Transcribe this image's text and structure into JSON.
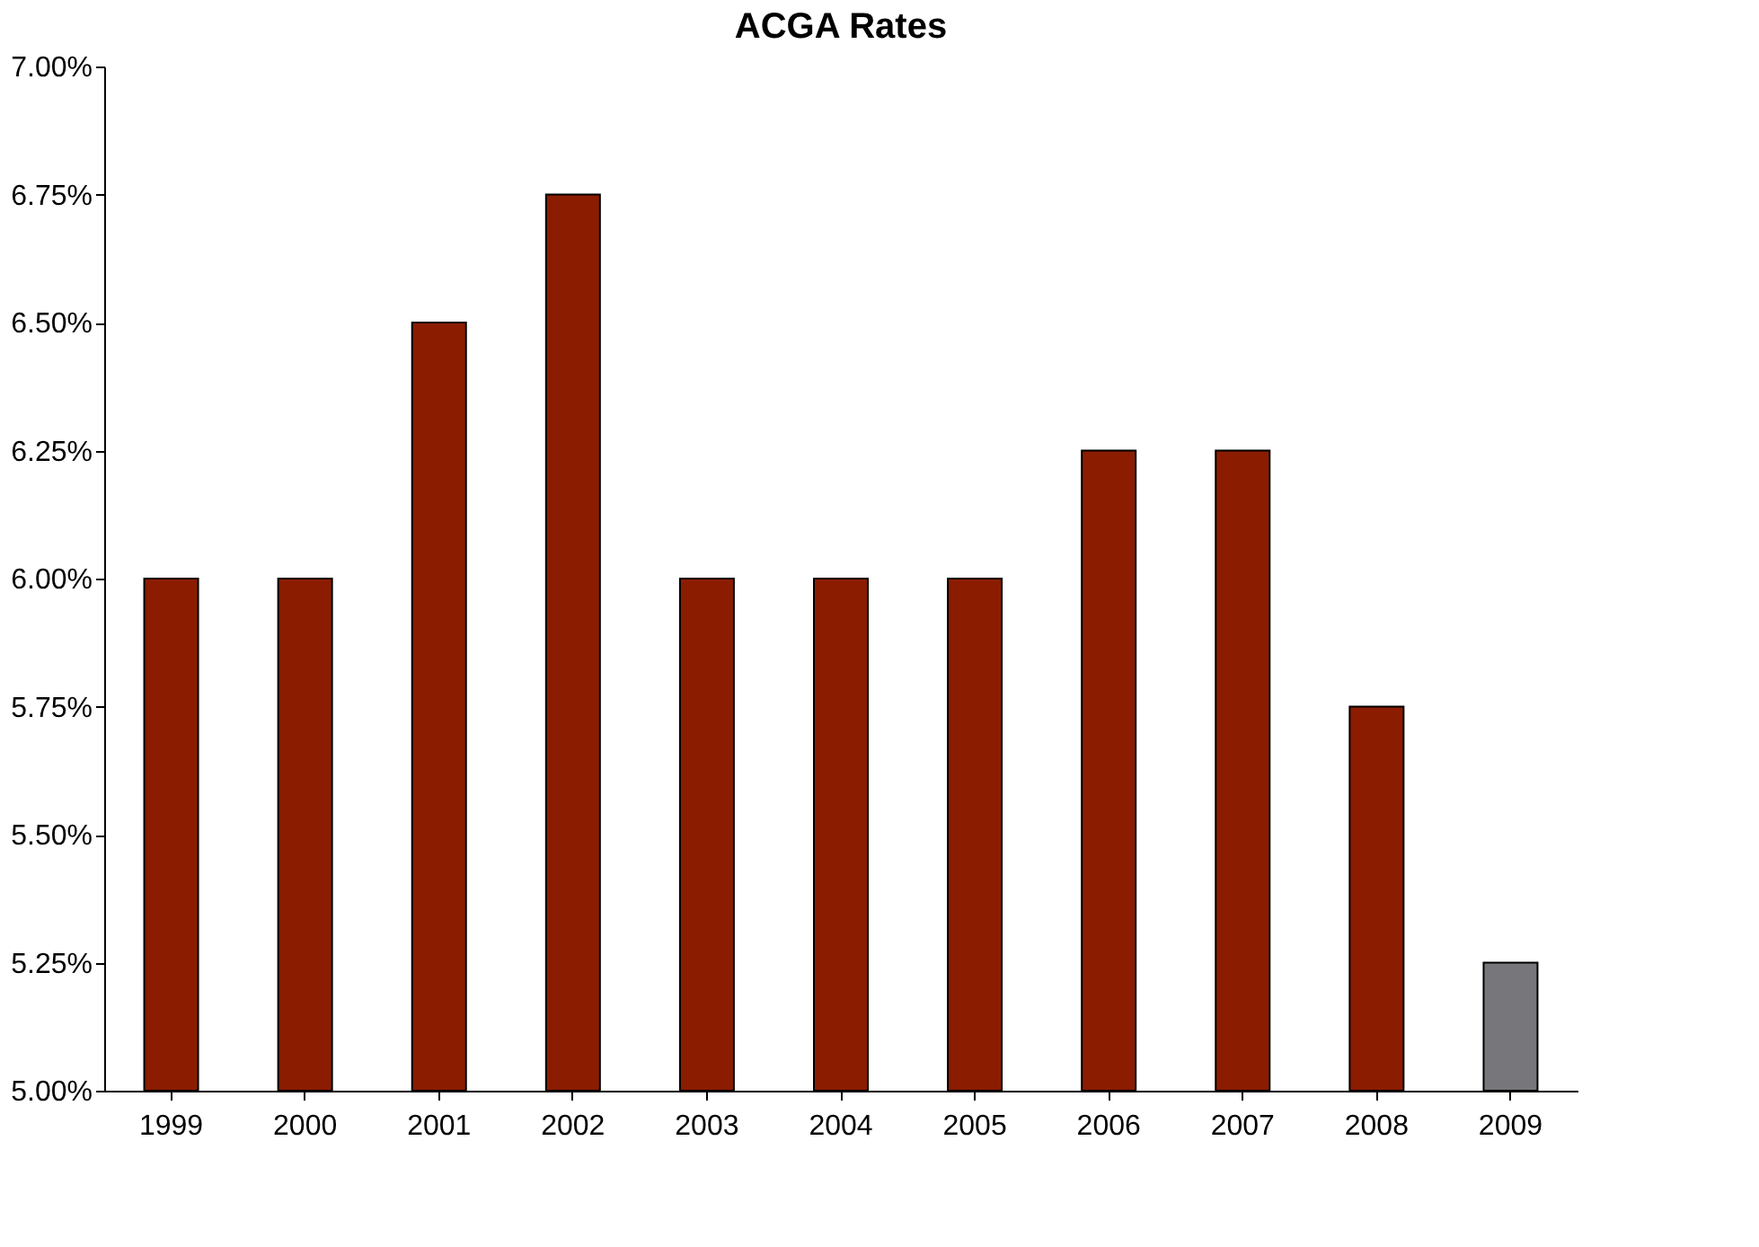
{
  "chart_data": {
    "type": "bar",
    "title": "ACGA Rates",
    "categories": [
      "1999",
      "2000",
      "2001",
      "2002",
      "2003",
      "2004",
      "2005",
      "2006",
      "2007",
      "2008",
      "2009"
    ],
    "values": [
      6.0,
      6.0,
      6.5,
      6.75,
      6.0,
      6.0,
      6.0,
      6.25,
      6.25,
      5.75,
      5.25
    ],
    "colors": [
      "#8b1c00",
      "#8b1c00",
      "#8b1c00",
      "#8b1c00",
      "#8b1c00",
      "#8b1c00",
      "#8b1c00",
      "#8b1c00",
      "#8b1c00",
      "#8b1c00",
      "#77777b"
    ],
    "ylim": [
      5.0,
      7.0
    ],
    "yticks": [
      {
        "value": 5.0,
        "label": "5.00%"
      },
      {
        "value": 5.25,
        "label": "5.25%"
      },
      {
        "value": 5.5,
        "label": "5.50%"
      },
      {
        "value": 5.75,
        "label": "5.75%"
      },
      {
        "value": 6.0,
        "label": "6.00%"
      },
      {
        "value": 6.25,
        "label": "6.25%"
      },
      {
        "value": 6.5,
        "label": "6.50%"
      },
      {
        "value": 6.75,
        "label": "6.75%"
      },
      {
        "value": 7.0,
        "label": "7.00%"
      }
    ],
    "grid": false
  }
}
